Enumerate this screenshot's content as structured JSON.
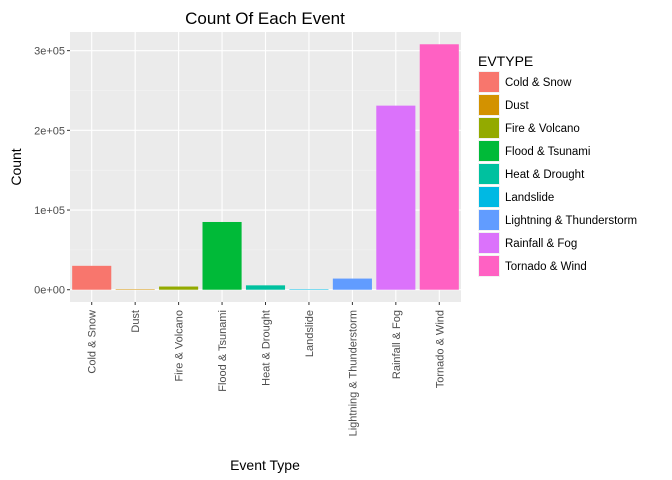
{
  "chart_data": {
    "type": "bar",
    "title": "Count Of Each Event",
    "xlabel": "Event Type",
    "ylabel": "Count",
    "categories": [
      "Cold & Snow",
      "Dust",
      "Fire & Volcano",
      "Flood & Tsunami",
      "Heat & Drought",
      "Landslide",
      "Lightning & Thunderstorm",
      "Rainfall & Fog",
      "Tornado & Wind"
    ],
    "values": [
      30000,
      400,
      4000,
      85000,
      5500,
      600,
      14000,
      231000,
      308000
    ],
    "colors": [
      "#F8766D",
      "#D39200",
      "#93AA00",
      "#00BA38",
      "#00C19F",
      "#00B9E3",
      "#619CFF",
      "#DB72FB",
      "#FF61C3"
    ],
    "yticks": [
      0,
      100000,
      200000,
      300000
    ],
    "ytick_labels": [
      "0e+00",
      "1e+05",
      "2e+05",
      "3e+05"
    ],
    "ylim": [
      -15400,
      323400
    ],
    "grid": true,
    "legend": {
      "title": "EVTYPE",
      "position": "right",
      "entries": [
        "Cold & Snow",
        "Dust",
        "Fire & Volcano",
        "Flood & Tsunami",
        "Heat & Drought",
        "Landslide",
        "Lightning & Thunderstorm",
        "Rainfall & Fog",
        "Tornado & Wind"
      ]
    }
  }
}
